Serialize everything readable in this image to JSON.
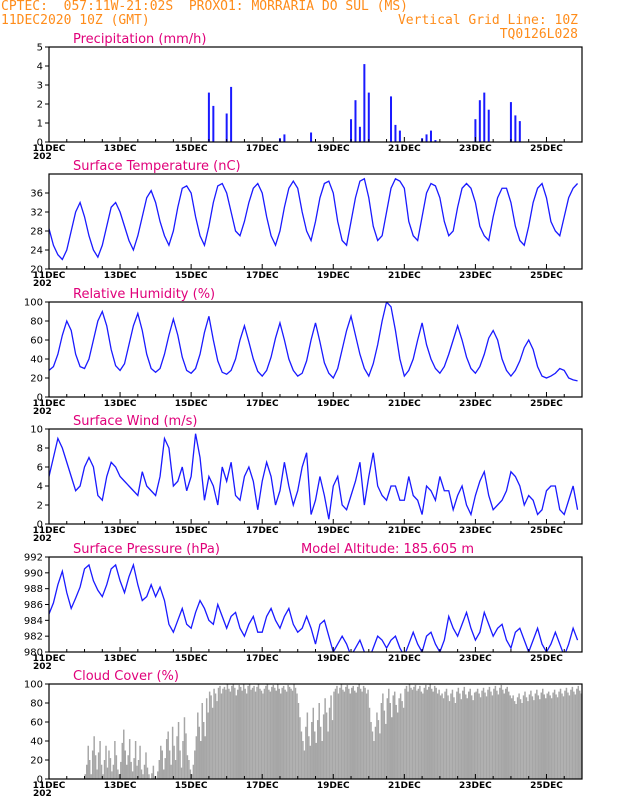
{
  "header": {
    "line1": "CPTEC:  057:11W-21:02S  PROXO1: MORRARIA DO SUL (MS)",
    "date": "11DEC2020 10Z (GMT)",
    "grid_note": "Vertical Grid Line: 10Z",
    "code": "TQ0126L028"
  },
  "x_axis": {
    "labels": [
      "11DEC",
      "13DEC",
      "15DEC",
      "17DEC",
      "19DEC",
      "21DEC",
      "23DEC",
      "25DEC"
    ],
    "label_days": [
      0,
      2,
      4,
      6,
      8,
      10,
      12,
      14
    ],
    "range_days": [
      0,
      15
    ],
    "step_hours": 3,
    "clipped_label": "202"
  },
  "chart_data": [
    {
      "type": "bar",
      "title": "Precipitation (mm/h)",
      "ylim": [
        0,
        5
      ],
      "yticks": [
        0,
        1,
        2,
        3,
        4,
        5
      ],
      "color": "#1a1aff",
      "x_start_days": 0,
      "step_hours": 3,
      "values": [
        0,
        0,
        0,
        0,
        0,
        0,
        0,
        0,
        0,
        0,
        0,
        0,
        0,
        0,
        0,
        0,
        0,
        0,
        0,
        0,
        0,
        0,
        0,
        0,
        0,
        0,
        0,
        0,
        0,
        0,
        0,
        0,
        0,
        0,
        0,
        0,
        2.6,
        1.9,
        0,
        0,
        1.5,
        2.9,
        0,
        0,
        0,
        0,
        0,
        0,
        0,
        0,
        0,
        0,
        0.2,
        0.4,
        0,
        0,
        0,
        0,
        0,
        0.5,
        0,
        0,
        0,
        0,
        0,
        0,
        0,
        0,
        1.2,
        2.2,
        0.8,
        4.1,
        2.6,
        0,
        0,
        0,
        0,
        2.4,
        0.9,
        0.6,
        0,
        0,
        0,
        0,
        0.2,
        0.4,
        0.6,
        0.1,
        0,
        0,
        0,
        0,
        0,
        0,
        0,
        0,
        1.2,
        2.2,
        2.6,
        1.7,
        0,
        0,
        0,
        0,
        2.1,
        1.4,
        1.1,
        0,
        0,
        0,
        0,
        0,
        0,
        0,
        0,
        0,
        0,
        0,
        0,
        0,
        0,
        0,
        0,
        0,
        0,
        0,
        0,
        0
      ]
    },
    {
      "type": "line",
      "title": "Surface Temperature (nC)",
      "ylim": [
        20,
        40
      ],
      "yticks": [
        20,
        24,
        28,
        32,
        36
      ],
      "color": "#1a1aff",
      "x_start_days": 0,
      "step_hours": 3,
      "values": [
        28.5,
        25,
        23,
        22,
        24,
        28,
        32,
        34,
        31,
        27,
        24,
        22.5,
        25,
        29,
        33,
        34,
        32,
        29,
        26,
        24,
        27,
        31,
        35,
        36.5,
        34,
        30,
        27,
        25,
        28,
        33,
        37,
        37.5,
        36,
        31,
        27,
        25,
        29,
        34,
        37.5,
        38,
        36,
        32,
        28,
        27,
        30,
        34,
        37,
        38,
        36,
        31,
        27,
        25,
        28,
        33,
        37,
        38.5,
        37,
        32,
        28,
        26,
        30,
        35,
        38,
        38.5,
        36,
        30,
        26,
        25,
        30,
        35,
        38.5,
        39,
        35,
        29,
        26,
        27,
        32,
        37,
        39,
        38.5,
        37,
        30,
        27,
        26,
        31,
        36,
        38,
        37.5,
        35,
        30,
        27,
        28,
        33,
        37,
        38,
        37,
        34,
        29,
        27,
        26,
        31,
        35,
        37,
        37,
        34,
        29,
        26,
        25,
        29,
        34,
        37,
        38,
        35,
        30,
        28,
        27,
        31,
        35,
        37,
        38
      ]
    },
    {
      "type": "line",
      "title": "Relative Humidity (%)",
      "ylim": [
        0,
        100
      ],
      "yticks": [
        0,
        20,
        40,
        60,
        80,
        100
      ],
      "color": "#1a1aff",
      "x_start_days": 0,
      "step_hours": 3,
      "values": [
        28,
        32,
        45,
        65,
        80,
        70,
        45,
        32,
        30,
        40,
        60,
        80,
        90,
        75,
        50,
        33,
        28,
        35,
        55,
        75,
        88,
        70,
        45,
        30,
        26,
        30,
        45,
        65,
        82,
        65,
        42,
        28,
        25,
        30,
        45,
        68,
        85,
        60,
        38,
        26,
        24,
        28,
        40,
        60,
        75,
        58,
        40,
        27,
        22,
        28,
        42,
        62,
        78,
        60,
        40,
        28,
        22,
        25,
        38,
        60,
        78,
        58,
        36,
        25,
        20,
        30,
        50,
        70,
        85,
        65,
        45,
        30,
        22,
        35,
        55,
        80,
        100,
        95,
        70,
        40,
        22,
        28,
        40,
        60,
        78,
        55,
        40,
        30,
        25,
        32,
        45,
        60,
        75,
        60,
        42,
        30,
        25,
        32,
        45,
        62,
        70,
        60,
        40,
        28,
        22,
        28,
        38,
        52,
        60,
        50,
        32,
        22,
        20,
        22,
        25,
        30,
        28,
        20,
        18,
        17
      ]
    },
    {
      "type": "line",
      "title": "Surface Wind (m/s)",
      "ylim": [
        0,
        10
      ],
      "yticks": [
        0,
        2,
        4,
        6,
        8,
        10
      ],
      "color": "#1a1aff",
      "x_start_days": 0,
      "step_hours": 3,
      "values": [
        5,
        7,
        9,
        8,
        6.5,
        5,
        3.5,
        4,
        6,
        7,
        6,
        3,
        2.5,
        5,
        6.5,
        6,
        5,
        4.5,
        4,
        3.5,
        3,
        5.5,
        4,
        3.5,
        3,
        5,
        9,
        8,
        4,
        4.5,
        6,
        3.5,
        5,
        9.5,
        7,
        2.5,
        5,
        4,
        2,
        6,
        4.5,
        6.5,
        3,
        2.5,
        5,
        6,
        4.5,
        1.5,
        4.5,
        6.5,
        5,
        2,
        3.5,
        6.5,
        4,
        2,
        3.5,
        6,
        7.5,
        1,
        2.5,
        5,
        3,
        0.5,
        4,
        5,
        2,
        1.5,
        3,
        4.5,
        6.5,
        2,
        5,
        7.5,
        4,
        3,
        2.5,
        4,
        4,
        2.5,
        2.5,
        5,
        3,
        2.5,
        1,
        4,
        3.5,
        2.5,
        5,
        3.5,
        3.5,
        1.5,
        3,
        4,
        2,
        1,
        3,
        4.5,
        5.5,
        3,
        1.5,
        2,
        2.5,
        3.5,
        5.5,
        5,
        4,
        2,
        3,
        2.5,
        1,
        1.5,
        3.5,
        4,
        4,
        1.5,
        1,
        2.5,
        4,
        1.5
      ]
    },
    {
      "type": "line",
      "title": "Surface Pressure (hPa)",
      "ylim": [
        980,
        992
      ],
      "yticks": [
        980,
        982,
        984,
        986,
        988,
        990,
        992
      ],
      "color": "#1a1aff",
      "annotation": "Model Altitude: 185.605  m",
      "x_start_days": 0,
      "step_hours": 3,
      "values": [
        984.8,
        986.2,
        988.5,
        990.2,
        987.5,
        985.5,
        986.8,
        988.2,
        990.5,
        991,
        989,
        987.8,
        987,
        988.5,
        990.5,
        991,
        989,
        987.5,
        989.5,
        991,
        988.5,
        986.5,
        987,
        988.5,
        987,
        988.2,
        986.5,
        983.5,
        982.5,
        984,
        985.5,
        983.5,
        983,
        985,
        986.5,
        985.5,
        984,
        983.5,
        986,
        984.5,
        983,
        984.5,
        985,
        983,
        982,
        983.5,
        984.5,
        982.5,
        982.5,
        984.5,
        985.5,
        984,
        983,
        984.5,
        985.5,
        983.5,
        982.5,
        983,
        984.5,
        983,
        981,
        983.5,
        984,
        982,
        980,
        981,
        982,
        981,
        979.5,
        980.5,
        981.5,
        980,
        979,
        980.5,
        982,
        981.5,
        980.5,
        981.5,
        982,
        980.5,
        979.5,
        981,
        982.5,
        981,
        980,
        982,
        982.5,
        981,
        980,
        981.5,
        984.5,
        983,
        982,
        983.5,
        985,
        983,
        981.5,
        982.5,
        985,
        983.5,
        982,
        983,
        983.5,
        981.5,
        980.5,
        982.5,
        983,
        981.5,
        980,
        981.5,
        983,
        981,
        980,
        981,
        982.5,
        981,
        979.5,
        981,
        983,
        981.5
      ]
    },
    {
      "type": "bar",
      "title": "Cloud Cover (%)",
      "ylim": [
        0,
        100
      ],
      "yticks": [
        0,
        20,
        40,
        60,
        80,
        100
      ],
      "color": "#a6a6a6",
      "x_start_days": 0,
      "step_hours": 1,
      "values": [
        0,
        0,
        0,
        0,
        0,
        0,
        0,
        0,
        0,
        0,
        0,
        0,
        0,
        0,
        0,
        0,
        0,
        0,
        0,
        0,
        0,
        0,
        0,
        0,
        5,
        15,
        35,
        20,
        5,
        30,
        45,
        25,
        10,
        28,
        40,
        15,
        5,
        20,
        35,
        12,
        30,
        22,
        8,
        15,
        40,
        25,
        10,
        5,
        18,
        38,
        52,
        30,
        15,
        25,
        42,
        18,
        8,
        22,
        40,
        14,
        20,
        35,
        10,
        5,
        15,
        28,
        12,
        5,
        0,
        6,
        14,
        3,
        0,
        8,
        20,
        35,
        30,
        10,
        22,
        42,
        50,
        30,
        15,
        55,
        35,
        20,
        45,
        60,
        30,
        12,
        40,
        65,
        48,
        25,
        20,
        10,
        5,
        15,
        30,
        45,
        70,
        55,
        40,
        80,
        60,
        45,
        85,
        70,
        92,
        88,
        75,
        95,
        90,
        82,
        96,
        98,
        90,
        95,
        97,
        94,
        100,
        95,
        92,
        98,
        100,
        96,
        88,
        94,
        99,
        97,
        93,
        100,
        95,
        90,
        98,
        100,
        94,
        96,
        98,
        92,
        97,
        100,
        95,
        93,
        90,
        95,
        98,
        100,
        94,
        92,
        97,
        99,
        96,
        93,
        100,
        95,
        90,
        96,
        98,
        94,
        92,
        99,
        97,
        95,
        93,
        100,
        96,
        90,
        80,
        65,
        50,
        40,
        30,
        55,
        70,
        45,
        35,
        60,
        75,
        50,
        38,
        62,
        80,
        55,
        40,
        68,
        85,
        70,
        50,
        75,
        88,
        62,
        92,
        95,
        98,
        90,
        96,
        100,
        94,
        92,
        97,
        99,
        95,
        90,
        96,
        98,
        93,
        91,
        97,
        100,
        95,
        92,
        98,
        96,
        90,
        94,
        75,
        60,
        50,
        40,
        55,
        70,
        62,
        48,
        80,
        90,
        72,
        58,
        85,
        95,
        80,
        65,
        88,
        92,
        78,
        70,
        85,
        90,
        82,
        75,
        95,
        98,
        92,
        100,
        96,
        94,
        97,
        99,
        93,
        95,
        98,
        92,
        90,
        96,
        99,
        94,
        97,
        100,
        95,
        92,
        98,
        96,
        90,
        94,
        88,
        90,
        85,
        92,
        95,
        88,
        82,
        90,
        94,
        86,
        80,
        92,
        96,
        90,
        84,
        93,
        97,
        89,
        85,
        92,
        95,
        88,
        83,
        91,
        92,
        95,
        90,
        86,
        93,
        96,
        91,
        87,
        94,
        97,
        92,
        88,
        95,
        98,
        93,
        89,
        96,
        99,
        94,
        90,
        95,
        97,
        92,
        88,
        85,
        88,
        82,
        79,
        86,
        90,
        84,
        80,
        88,
        92,
        86,
        82,
        89,
        93,
        87,
        83,
        90,
        94,
        88,
        84,
        91,
        95,
        89,
        85,
        90,
        92,
        88,
        85,
        91,
        94,
        89,
        86,
        92,
        95,
        90,
        87,
        93,
        96,
        91,
        88,
        94,
        97,
        92,
        89,
        95,
        98,
        93,
        90,
        92,
        94,
        96,
        98,
        100
      ]
    }
  ]
}
